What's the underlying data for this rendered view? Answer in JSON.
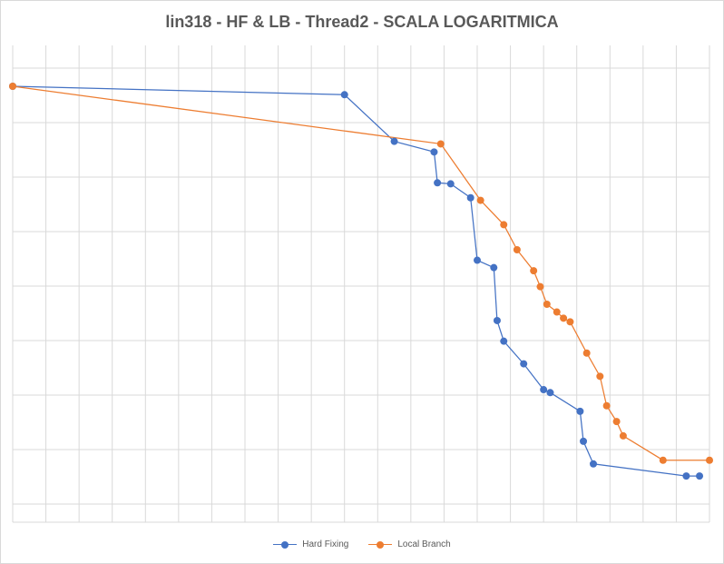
{
  "chart_data": {
    "type": "line",
    "title": "lin318 - HF & LB - Thread2 - SCALA LOGARITMICA",
    "xlabel": "",
    "ylabel": "",
    "yscale": "log",
    "grid": true,
    "legend_position": "bottom",
    "x_range": [
      0,
      21
    ],
    "y_range": [
      1,
      256
    ],
    "series": [
      {
        "name": "Hard Fixing",
        "color": "#4472c4",
        "points": [
          [
            0,
            256
          ],
          [
            10,
            230
          ],
          [
            11.5,
            127
          ],
          [
            12.7,
            111
          ],
          [
            12.8,
            75
          ],
          [
            13.2,
            74
          ],
          [
            13.8,
            62
          ],
          [
            14,
            28
          ],
          [
            14.5,
            25.5
          ],
          [
            14.6,
            13
          ],
          [
            14.8,
            10
          ],
          [
            15.4,
            7.5
          ],
          [
            16,
            5.4
          ],
          [
            16.2,
            5.2
          ],
          [
            17.1,
            4.1
          ],
          [
            17.2,
            2.8
          ],
          [
            17.5,
            2.1
          ],
          [
            20.3,
            1.8
          ],
          [
            20.7,
            1.8
          ]
        ]
      },
      {
        "name": "Local Branch",
        "color": "#ed7d31",
        "points": [
          [
            0,
            256
          ],
          [
            12.9,
            123
          ],
          [
            14.1,
            60
          ],
          [
            14.8,
            44
          ],
          [
            15.2,
            32
          ],
          [
            15.7,
            24.5
          ],
          [
            15.9,
            20
          ],
          [
            16.1,
            16
          ],
          [
            16.4,
            14.5
          ],
          [
            16.6,
            13.4
          ],
          [
            16.8,
            12.8
          ],
          [
            17.3,
            8.6
          ],
          [
            17.7,
            6.4
          ],
          [
            17.9,
            4.4
          ],
          [
            18.2,
            3.6
          ],
          [
            18.4,
            3
          ],
          [
            19.6,
            2.2
          ],
          [
            21,
            2.2
          ]
        ]
      }
    ]
  }
}
